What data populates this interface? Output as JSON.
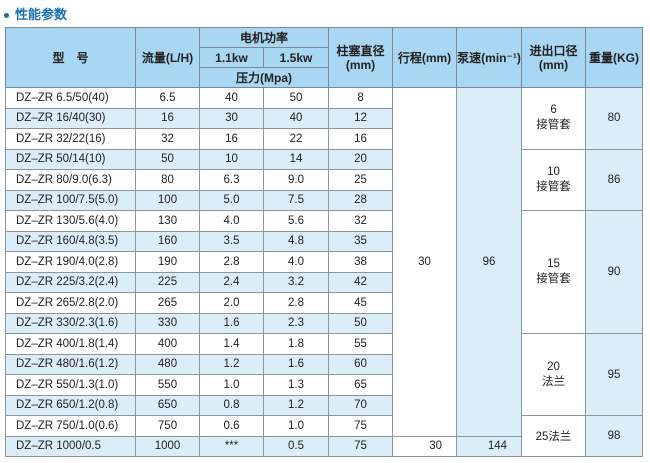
{
  "title": "性能参数",
  "header": {
    "model": "型　号",
    "flow": "流量(L/H)",
    "motor_power": "电机功率",
    "p1": "1.1kw",
    "p2": "1.5kw",
    "pressure": "压力(Mpa)",
    "plunger": "柱塞直径(mm)",
    "stroke": "行程(mm)",
    "speed": "泵速(min⁻¹)",
    "port": "进出口径(mm)",
    "weight": "重量(KG)"
  },
  "rows": [
    [
      "DZ–ZR 6.5/50(40)",
      "6.5",
      "40",
      "50",
      "8"
    ],
    [
      "DZ–ZR 16/40(30)",
      "16",
      "30",
      "40",
      "12"
    ],
    [
      "DZ–ZR 32/22(16)",
      "32",
      "16",
      "22",
      "16"
    ],
    [
      "DZ–ZR 50/14(10)",
      "50",
      "10",
      "14",
      "20"
    ],
    [
      "DZ–ZR 80/9.0(6.3)",
      "80",
      "6.3",
      "9.0",
      "25"
    ],
    [
      "DZ–ZR 100/7.5(5.0)",
      "100",
      "5.0",
      "7.5",
      "28"
    ],
    [
      "DZ–ZR 130/5.6(4.0)",
      "130",
      "4.0",
      "5.6",
      "32"
    ],
    [
      "DZ–ZR 160/4.8(3.5)",
      "160",
      "3.5",
      "4.8",
      "35"
    ],
    [
      "DZ–ZR 190/4.0(2.8)",
      "190",
      "2.8",
      "4.0",
      "38"
    ],
    [
      "DZ–ZR 225/3.2(2.4)",
      "225",
      "2.4",
      "3.2",
      "42"
    ],
    [
      "DZ–ZR 265/2.8(2.0)",
      "265",
      "2.0",
      "2.8",
      "45"
    ],
    [
      "DZ–ZR 330/2.3(1.6)",
      "330",
      "1.6",
      "2.3",
      "50"
    ],
    [
      "DZ–ZR 400/1.8(1.4)",
      "400",
      "1.4",
      "1.8",
      "55"
    ],
    [
      "DZ–ZR 480/1.6(1.2)",
      "480",
      "1.2",
      "1.6",
      "60"
    ],
    [
      "DZ–ZR 550/1.3(1.0)",
      "550",
      "1.0",
      "1.3",
      "65"
    ],
    [
      "DZ–ZR 650/1.2(0.8)",
      "650",
      "0.8",
      "1.2",
      "70"
    ],
    [
      "DZ–ZR 750/1.0(0.6)",
      "750",
      "0.6",
      "1.0",
      "75"
    ],
    [
      "DZ–ZR 1000/0.5",
      "1000",
      "***",
      "0.5",
      "75"
    ]
  ],
  "stroke_main": "30",
  "speed_main": "96",
  "stroke_last": "30",
  "speed_last": "144",
  "groups": [
    {
      "start": 0,
      "span": 3,
      "port_size": "6",
      "port_type": "接管套",
      "weight": "80"
    },
    {
      "start": 3,
      "span": 3,
      "port_size": "10",
      "port_type": "接管套",
      "weight": "86"
    },
    {
      "start": 6,
      "span": 6,
      "port_size": "15",
      "port_type": "接管套",
      "weight": "90"
    },
    {
      "start": 12,
      "span": 4,
      "port_size": "20",
      "port_type": "法兰",
      "weight": "95"
    },
    {
      "start": 16,
      "span": 2,
      "port_size": "25",
      "port_type": "法兰",
      "weight": "98"
    }
  ]
}
